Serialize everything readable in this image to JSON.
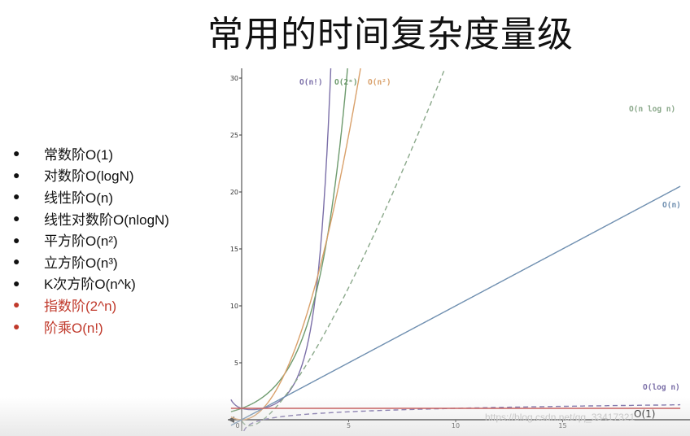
{
  "title": "常用的时间复杂度量级",
  "list": [
    {
      "label": "常数阶O(1)",
      "highlight": false
    },
    {
      "label": "对数阶O(logN)",
      "highlight": false
    },
    {
      "label": "线性阶O(n)",
      "highlight": false
    },
    {
      "label": "线性对数阶O(nlogN)",
      "highlight": false
    },
    {
      "label": "平方阶O(n²)",
      "highlight": false
    },
    {
      "label": "立方阶O(n³)",
      "highlight": false
    },
    {
      "label": "K次方阶O(n^k)",
      "highlight": false
    },
    {
      "label": "指数阶(2^n)",
      "highlight": true
    },
    {
      "label": "阶乘O(n!)",
      "highlight": true
    }
  ],
  "bullet": "●",
  "watermark": "https://blog.csdn.net/qq_33417321",
  "chart_data": {
    "type": "line",
    "xlim": [
      -0.5,
      20.5
    ],
    "ylim": [
      -0.5,
      30.5
    ],
    "x_ticks": [
      0,
      5,
      10,
      15
    ],
    "y_ticks": [
      5,
      10,
      15,
      20,
      25,
      30
    ],
    "series": [
      {
        "name": "O(n!)",
        "func": "factorial",
        "color": "#7b6fa8",
        "dash": false
      },
      {
        "name": "O(2^n)",
        "func": "pow2",
        "color": "#6d9a6d",
        "dash": false
      },
      {
        "name": "O(n²)",
        "func": "square",
        "color": "#d9a06a",
        "dash": false
      },
      {
        "name": "O(n log n)",
        "func": "nlogn",
        "color": "#8aa88a",
        "dash": true
      },
      {
        "name": "O(n)",
        "func": "linear",
        "color": "#6f8fb0",
        "dash": false
      },
      {
        "name": "O(log n)",
        "func": "log",
        "color": "#7b6fa8",
        "dash": true
      },
      {
        "name": "O(1)",
        "func": "const",
        "color": "#c44a4a",
        "dash": false
      }
    ],
    "series_labels": {
      "factorial": "O(n!)",
      "pow2": "O(2ⁿ)",
      "square": "O(n²)",
      "nlogn": "O(n log n)",
      "linear": "O(n)",
      "log": "O(log n)",
      "const": "O(1)"
    },
    "grid": false,
    "legend": "inline"
  }
}
